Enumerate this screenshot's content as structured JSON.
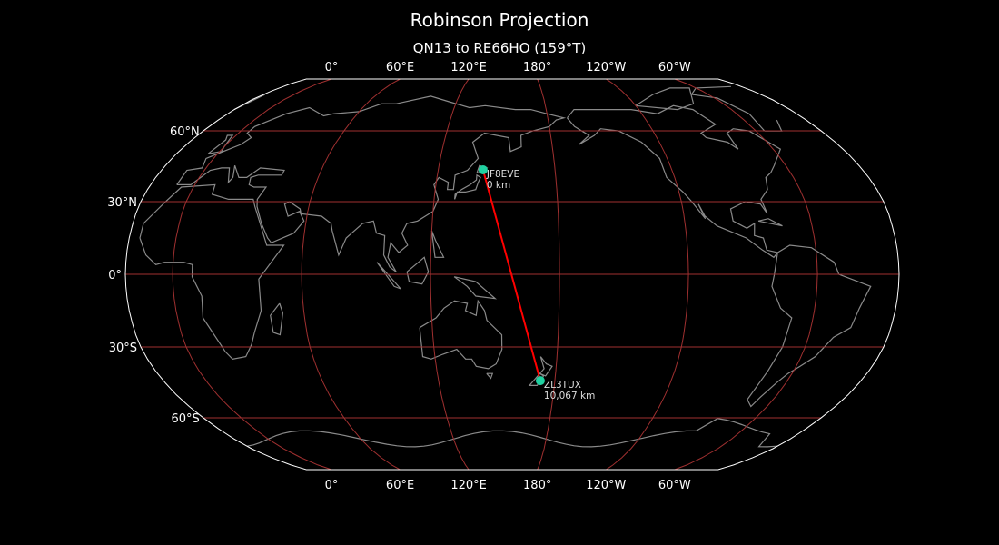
{
  "title": "Robinson Projection",
  "subtitle": "QN13 to RE66HO (159°T)",
  "map": {
    "projection": "robinson",
    "central_longitude": 158,
    "meridians": [
      0,
      60,
      120,
      180,
      -120,
      -60
    ],
    "meridian_labels": [
      "0°",
      "60°E",
      "120°E",
      "180°",
      "120°W",
      "60°W"
    ],
    "parallels": [
      60,
      30,
      0,
      -30,
      -60
    ],
    "parallel_labels": [
      "60°N",
      "30°N",
      "0°",
      "30°S",
      "60°S"
    ],
    "colors": {
      "background": "#000000",
      "coastline": "#8a8a8a",
      "gridline": "#a03030",
      "outline": "#ffffff",
      "path": "#ff0000",
      "station": "#20d0a0"
    }
  },
  "stations": [
    {
      "call": "JF8EVE",
      "distance": "0 km",
      "lat": 43.2,
      "lon": 143
    },
    {
      "call": "ZL3TUX",
      "distance": "10,067 km",
      "lat": -44,
      "lon": 172.5
    }
  ]
}
